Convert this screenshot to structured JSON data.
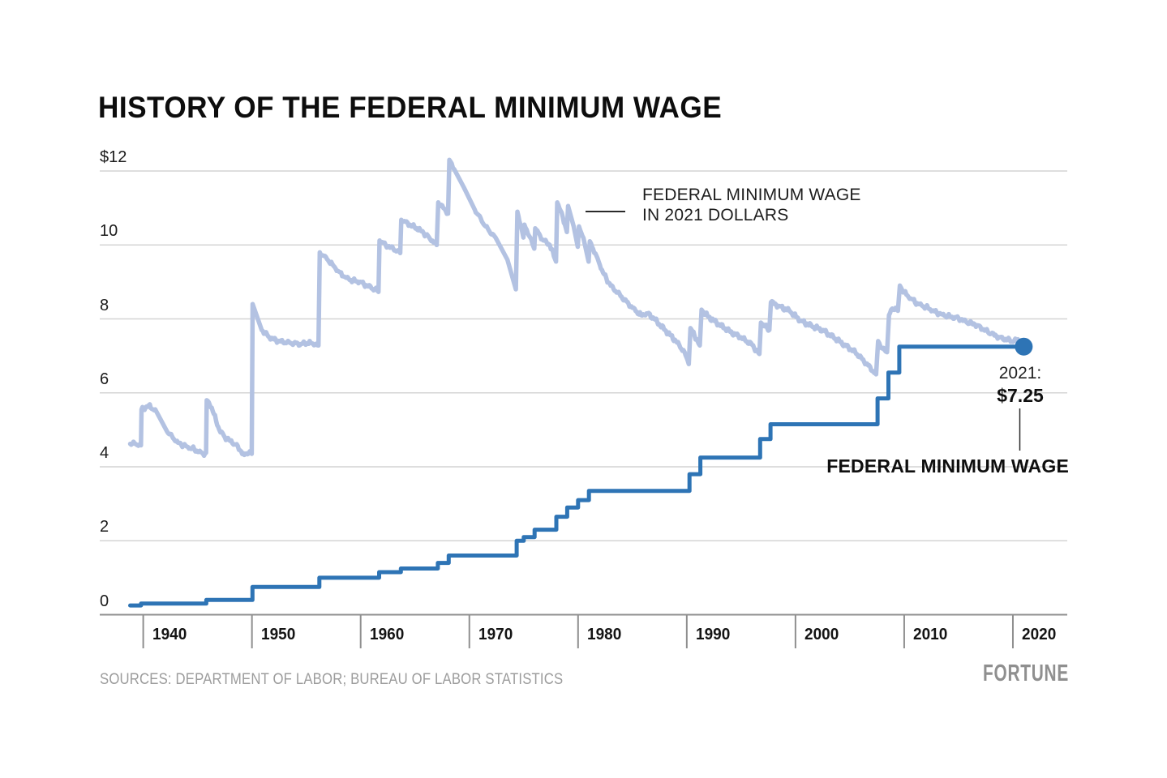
{
  "title": "HISTORY OF THE FEDERAL MINIMUM WAGE",
  "source_note": "SOURCES: DEPARTMENT OF LABOR; BUREAU OF LABOR STATISTICS",
  "brand": "FORTUNE",
  "annotations": {
    "real_series_label_line1": "FEDERAL MINIMUM WAGE",
    "real_series_label_line2": "IN 2021 DOLLARS",
    "endpoint_year": "2021:",
    "endpoint_value": "$7.25",
    "nominal_series_label": "FEDERAL MINIMUM WAGE"
  },
  "colors": {
    "nominal_line": "#2e74b5",
    "real_line": "#b3c2e2",
    "gridline": "#d4d4d4",
    "axis": "#8f8f8f",
    "endpoint_dot": "#2e74b5",
    "annotation_line": "#2a2a2a"
  },
  "chart_data": {
    "type": "line",
    "title": "History of the federal minimum wage",
    "grid": true,
    "legend_position": "inline-annotations",
    "x_axis": {
      "range": [
        1936,
        2025
      ],
      "ticks": [
        {
          "label": "1940",
          "value": 1940
        },
        {
          "label": "1950",
          "value": 1950
        },
        {
          "label": "1960",
          "value": 1960
        },
        {
          "label": "1970",
          "value": 1970
        },
        {
          "label": "1980",
          "value": 1980
        },
        {
          "label": "1990",
          "value": 1990
        },
        {
          "label": "2000",
          "value": 2000
        },
        {
          "label": "2010",
          "value": 2010
        },
        {
          "label": "2020",
          "value": 2020
        }
      ]
    },
    "y_axis": {
      "range": [
        0,
        12
      ],
      "ticks": [
        {
          "label": "$12",
          "value": 12
        },
        {
          "label": "10",
          "value": 10
        },
        {
          "label": "8",
          "value": 8
        },
        {
          "label": "6",
          "value": 6
        },
        {
          "label": "4",
          "value": 4
        },
        {
          "label": "2",
          "value": 2
        },
        {
          "label": "0",
          "value": 0
        }
      ]
    },
    "series": [
      {
        "name": "Federal minimum wage",
        "style": "step",
        "unit": "USD, nominal",
        "end_point": {
          "year": 2021,
          "value": 7.25
        },
        "points": [
          [
            1938.8,
            0.25
          ],
          [
            1939.8,
            0.3
          ],
          [
            1945.8,
            0.4
          ],
          [
            1950.05,
            0.75
          ],
          [
            1956.2,
            1.0
          ],
          [
            1961.7,
            1.15
          ],
          [
            1963.7,
            1.25
          ],
          [
            1967.1,
            1.4
          ],
          [
            1968.1,
            1.6
          ],
          [
            1974.35,
            2.0
          ],
          [
            1975.0,
            2.1
          ],
          [
            1976.0,
            2.3
          ],
          [
            1978.0,
            2.65
          ],
          [
            1979.0,
            2.9
          ],
          [
            1980.0,
            3.1
          ],
          [
            1981.0,
            3.35
          ],
          [
            1990.25,
            3.8
          ],
          [
            1991.25,
            4.25
          ],
          [
            1996.75,
            4.75
          ],
          [
            1997.7,
            5.15
          ],
          [
            2007.55,
            5.85
          ],
          [
            2008.55,
            6.55
          ],
          [
            2009.55,
            7.25
          ]
        ]
      },
      {
        "name": "Federal minimum wage in 2021 dollars",
        "style": "line",
        "unit": "USD, 2021 dollars",
        "points": [
          [
            1938.8,
            4.62
          ],
          [
            1939.2,
            4.64
          ],
          [
            1939.55,
            4.57
          ],
          [
            1939.79,
            4.58
          ],
          [
            1939.84,
            5.55
          ],
          [
            1940.5,
            5.66
          ],
          [
            1941.2,
            5.5
          ],
          [
            1942.2,
            4.95
          ],
          [
            1943.2,
            4.65
          ],
          [
            1944.0,
            4.55
          ],
          [
            1944.7,
            4.47
          ],
          [
            1945.5,
            4.35
          ],
          [
            1945.78,
            4.38
          ],
          [
            1945.84,
            5.8
          ],
          [
            1946.3,
            5.6
          ],
          [
            1946.7,
            5.25
          ],
          [
            1947.0,
            5.0
          ],
          [
            1947.5,
            4.8
          ],
          [
            1948.0,
            4.7
          ],
          [
            1948.5,
            4.6
          ],
          [
            1949.0,
            4.42
          ],
          [
            1949.3,
            4.32
          ],
          [
            1949.8,
            4.42
          ],
          [
            1949.98,
            4.35
          ],
          [
            1950.06,
            8.4
          ],
          [
            1950.9,
            7.7
          ],
          [
            1951.6,
            7.5
          ],
          [
            1952.4,
            7.4
          ],
          [
            1953.5,
            7.35
          ],
          [
            1954.5,
            7.32
          ],
          [
            1955.4,
            7.36
          ],
          [
            1956.12,
            7.28
          ],
          [
            1956.24,
            9.8
          ],
          [
            1956.9,
            9.62
          ],
          [
            1957.4,
            9.48
          ],
          [
            1957.9,
            9.3
          ],
          [
            1958.4,
            9.15
          ],
          [
            1959.1,
            9.05
          ],
          [
            1959.9,
            9.0
          ],
          [
            1960.6,
            8.9
          ],
          [
            1961.3,
            8.8
          ],
          [
            1961.64,
            8.73
          ],
          [
            1961.74,
            10.12
          ],
          [
            1962.3,
            10.0
          ],
          [
            1963.0,
            9.9
          ],
          [
            1963.64,
            9.78
          ],
          [
            1963.74,
            10.68
          ],
          [
            1964.5,
            10.55
          ],
          [
            1965.5,
            10.4
          ],
          [
            1966.3,
            10.2
          ],
          [
            1967.0,
            10.0
          ],
          [
            1967.14,
            11.15
          ],
          [
            1967.6,
            11.0
          ],
          [
            1968.04,
            10.85
          ],
          [
            1968.16,
            12.3
          ],
          [
            1968.6,
            12.05
          ],
          [
            1969.5,
            11.55
          ],
          [
            1970.5,
            10.95
          ],
          [
            1971.5,
            10.5
          ],
          [
            1972.5,
            10.15
          ],
          [
            1973.5,
            9.6
          ],
          [
            1974.28,
            8.8
          ],
          [
            1974.42,
            10.9
          ],
          [
            1974.8,
            10.45
          ],
          [
            1974.97,
            10.2
          ],
          [
            1975.06,
            10.55
          ],
          [
            1975.6,
            10.2
          ],
          [
            1975.97,
            9.9
          ],
          [
            1976.06,
            10.45
          ],
          [
            1976.7,
            10.15
          ],
          [
            1977.4,
            10.0
          ],
          [
            1977.97,
            9.55
          ],
          [
            1978.08,
            11.15
          ],
          [
            1978.6,
            10.75
          ],
          [
            1978.97,
            10.35
          ],
          [
            1979.08,
            11.05
          ],
          [
            1979.6,
            10.5
          ],
          [
            1979.97,
            9.95
          ],
          [
            1980.08,
            10.5
          ],
          [
            1980.6,
            10.05
          ],
          [
            1980.97,
            9.55
          ],
          [
            1981.08,
            10.1
          ],
          [
            1981.7,
            9.7
          ],
          [
            1982.3,
            9.25
          ],
          [
            1983.0,
            8.9
          ],
          [
            1984.0,
            8.6
          ],
          [
            1985.0,
            8.3
          ],
          [
            1985.8,
            8.1
          ],
          [
            1986.4,
            8.15
          ],
          [
            1987.0,
            8.0
          ],
          [
            1988.0,
            7.7
          ],
          [
            1989.0,
            7.4
          ],
          [
            1989.8,
            7.1
          ],
          [
            1990.18,
            6.78
          ],
          [
            1990.34,
            7.75
          ],
          [
            1991.0,
            7.4
          ],
          [
            1991.2,
            7.28
          ],
          [
            1991.36,
            8.25
          ],
          [
            1992.0,
            8.05
          ],
          [
            1993.0,
            7.85
          ],
          [
            1994.0,
            7.65
          ],
          [
            1995.0,
            7.5
          ],
          [
            1996.0,
            7.3
          ],
          [
            1996.68,
            7.05
          ],
          [
            1996.82,
            7.9
          ],
          [
            1997.2,
            7.8
          ],
          [
            1997.6,
            7.7
          ],
          [
            1997.74,
            8.45
          ],
          [
            1998.5,
            8.35
          ],
          [
            1999.5,
            8.2
          ],
          [
            2000.5,
            7.95
          ],
          [
            2001.5,
            7.8
          ],
          [
            2002.5,
            7.7
          ],
          [
            2003.5,
            7.5
          ],
          [
            2004.5,
            7.3
          ],
          [
            2005.5,
            7.1
          ],
          [
            2006.5,
            6.8
          ],
          [
            2007.42,
            6.5
          ],
          [
            2007.6,
            7.4
          ],
          [
            2008.0,
            7.2
          ],
          [
            2008.42,
            7.1
          ],
          [
            2008.6,
            8.1
          ],
          [
            2008.9,
            8.28
          ],
          [
            2009.2,
            8.3
          ],
          [
            2009.42,
            8.22
          ],
          [
            2009.6,
            8.9
          ],
          [
            2010.0,
            8.72
          ],
          [
            2010.6,
            8.55
          ],
          [
            2011.3,
            8.4
          ],
          [
            2012.0,
            8.32
          ],
          [
            2012.8,
            8.2
          ],
          [
            2013.5,
            8.12
          ],
          [
            2014.3,
            8.05
          ],
          [
            2015.0,
            8.02
          ],
          [
            2015.7,
            7.92
          ],
          [
            2016.5,
            7.85
          ],
          [
            2017.3,
            7.72
          ],
          [
            2018.0,
            7.6
          ],
          [
            2018.8,
            7.5
          ],
          [
            2019.5,
            7.43
          ],
          [
            2020.1,
            7.4
          ],
          [
            2020.45,
            7.45
          ],
          [
            2021.0,
            7.25
          ]
        ]
      }
    ]
  }
}
